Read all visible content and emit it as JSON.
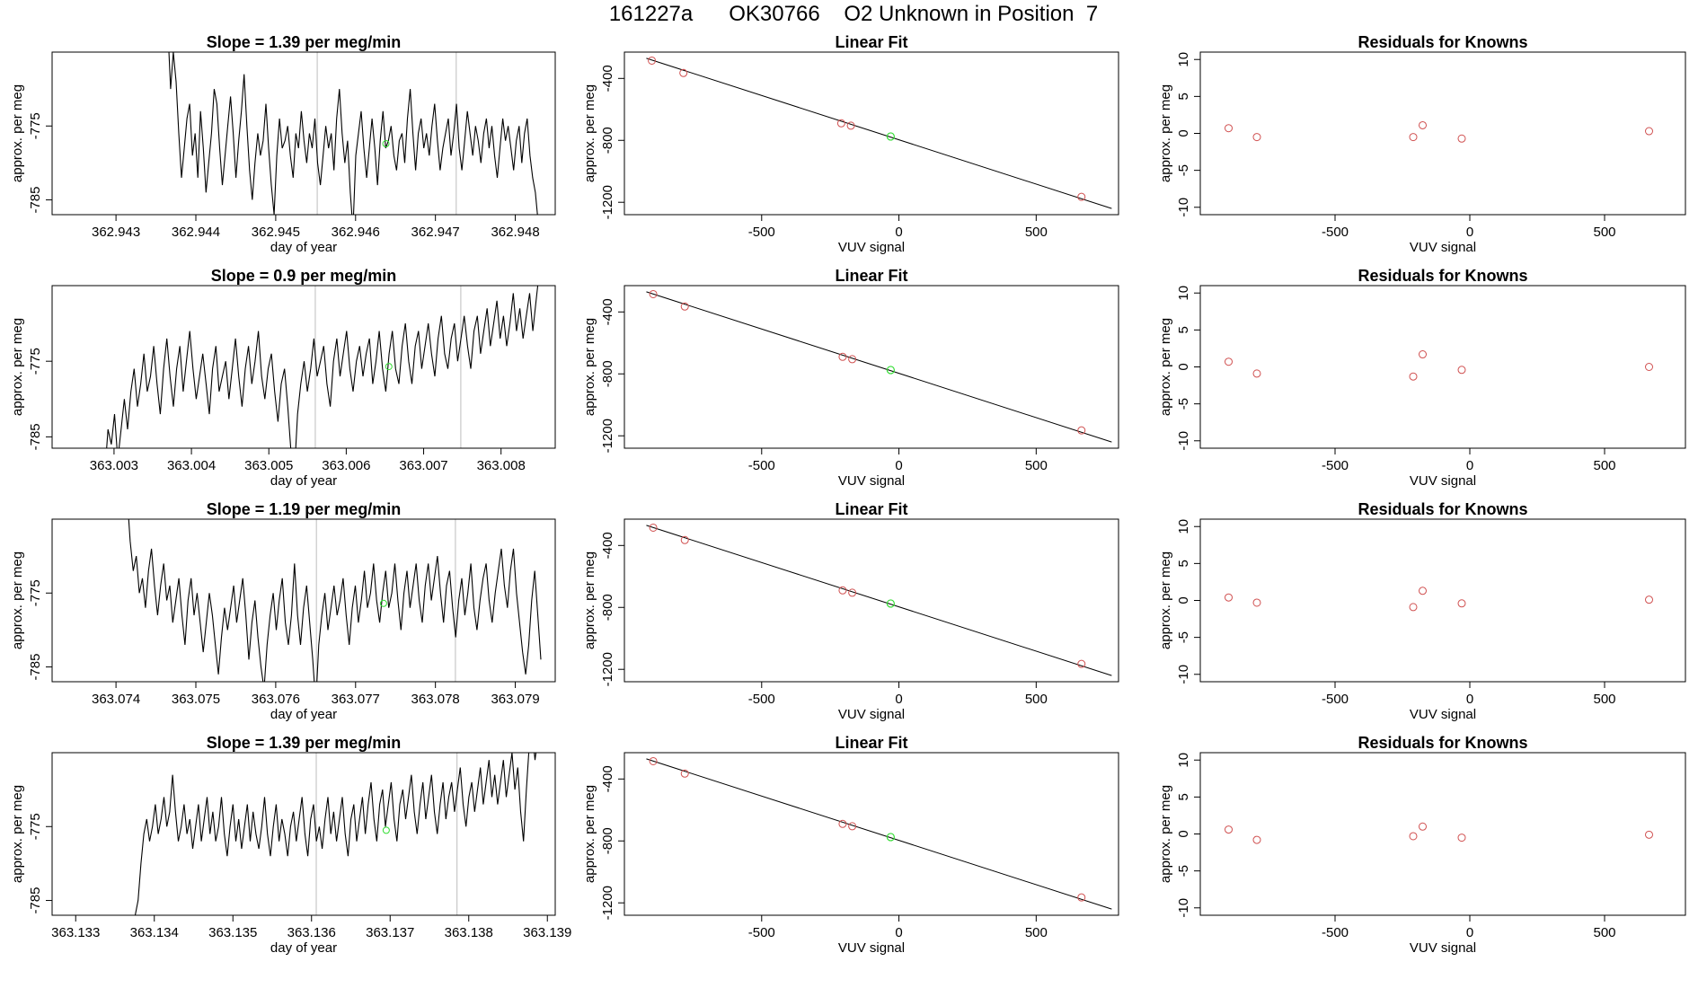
{
  "figure": {
    "title": "161227a      OK30766    O2 Unknown in Position  7"
  },
  "colors": {
    "trace": "#000000",
    "known_point": "#d05050",
    "unknown_point": "#33dd33",
    "marker_line": "#c8c8c8",
    "frame": "#000000"
  },
  "chart_data": [
    {
      "row": 1,
      "panel": "timeseries",
      "type": "line",
      "title": "Slope =  1.39  per meg/min",
      "xlabel": "day of year",
      "ylabel": "approx. per meg",
      "x_tick_labels": [
        "362.943",
        "362.944",
        "362.945",
        "362.946",
        "362.947",
        "362.948"
      ],
      "x_ticks": [
        362.943,
        362.944,
        362.945,
        362.946,
        362.947,
        362.948
      ],
      "y_ticks": [
        -785,
        -775
      ],
      "xlim": [
        362.9422,
        362.9485
      ],
      "ylim": [
        -787,
        -765
      ],
      "vlines": [
        362.94552,
        362.94726
      ],
      "unknown_point": {
        "x": 362.94638,
        "y": -777.4
      },
      "x_start": 362.94365,
      "x_end": 362.94832,
      "series_y": [
        -762,
        -770,
        -765,
        -769,
        -776,
        -782,
        -778,
        -774,
        -772,
        -779,
        -776,
        -782,
        -773,
        -778,
        -784,
        -780,
        -776,
        -770,
        -772,
        -778,
        -783,
        -779,
        -775,
        -771,
        -776,
        -782,
        -777,
        -773,
        -768,
        -775,
        -781,
        -785,
        -780,
        -776,
        -779,
        -777,
        -772,
        -778,
        -783,
        -787,
        -779,
        -774,
        -778,
        -777,
        -775,
        -779,
        -782,
        -776,
        -778,
        -773,
        -777,
        -780,
        -776,
        -778,
        -774,
        -780,
        -783,
        -779,
        -775,
        -778,
        -776,
        -781,
        -774,
        -770,
        -776,
        -780,
        -777,
        -784,
        -789,
        -779,
        -776,
        -773,
        -778,
        -782,
        -778,
        -774,
        -778,
        -783,
        -777,
        -773,
        -778,
        -777,
        -775,
        -779,
        -781,
        -777,
        -776,
        -780,
        -774,
        -770,
        -776,
        -781,
        -776,
        -774,
        -778,
        -776,
        -779,
        -775,
        -772,
        -777,
        -781,
        -778,
        -776,
        -774,
        -779,
        -776,
        -772,
        -778,
        -781,
        -777,
        -773,
        -776,
        -779,
        -775,
        -777,
        -780,
        -776,
        -774,
        -778,
        -775,
        -779,
        -782,
        -778,
        -774,
        -777,
        -775,
        -778,
        -781,
        -777,
        -775,
        -780,
        -776,
        -774,
        -779,
        -782,
        -784,
        -788,
        -789
      ]
    },
    {
      "row": 1,
      "panel": "linear_fit",
      "type": "scatter",
      "title": "Linear Fit",
      "xlabel": "VUV signal",
      "ylabel": "approx. per meg",
      "x_tick_labels": [
        "-500",
        "0",
        "500"
      ],
      "x_ticks": [
        -500,
        0,
        500
      ],
      "y_tick_labels": [
        "-400",
        "-800",
        "-1200"
      ],
      "y_ticks": [
        -400,
        -800,
        -1200
      ],
      "xlim": [
        -1000,
        800
      ],
      "ylim": [
        -1280,
        -230
      ],
      "fit_line": [
        [
          -920,
          -270
        ],
        [
          775,
          -1240
        ]
      ],
      "known_points": [
        [
          -900,
          -285
        ],
        [
          -785,
          -365
        ],
        [
          -210,
          -690
        ],
        [
          -175,
          -705
        ],
        [
          665,
          -1165
        ]
      ],
      "unknown_point": [
        -30,
        -775
      ]
    },
    {
      "row": 1,
      "panel": "residuals",
      "type": "scatter",
      "title": "Residuals for Knowns",
      "xlabel": "VUV signal",
      "ylabel": "approx. per meg",
      "x_tick_labels": [
        "-500",
        "0",
        "500"
      ],
      "x_ticks": [
        -500,
        0,
        500
      ],
      "y_tick_labels": [
        "-10",
        "-5",
        "0",
        "5",
        "10"
      ],
      "y_ticks": [
        -10,
        -5,
        0,
        5,
        10
      ],
      "xlim": [
        -1000,
        800
      ],
      "ylim": [
        -11,
        11
      ],
      "points": [
        [
          -895,
          0.7
        ],
        [
          -790,
          -0.5
        ],
        [
          -210,
          -0.5
        ],
        [
          -175,
          1.1
        ],
        [
          -30,
          -0.7
        ],
        [
          665,
          0.3
        ]
      ]
    },
    {
      "row": 2,
      "panel": "timeseries",
      "type": "line",
      "title": "Slope =  0.9  per meg/min",
      "xlabel": "day of year",
      "ylabel": "approx. per meg",
      "x_tick_labels": [
        "363.003",
        "363.004",
        "363.005",
        "363.006",
        "363.007",
        "363.008"
      ],
      "x_ticks": [
        363.003,
        363.004,
        363.005,
        363.006,
        363.007,
        363.008
      ],
      "y_ticks": [
        -785,
        -775
      ],
      "xlim": [
        363.0022,
        363.0087
      ],
      "ylim": [
        -786.5,
        -765
      ],
      "vlines": [
        363.0056,
        363.00748
      ],
      "unknown_point": {
        "x": 363.00655,
        "y": -775.7
      },
      "x_start": 363.00288,
      "x_end": 363.00858,
      "series_y": [
        -790,
        -784,
        -786,
        -782,
        -788,
        -784,
        -780,
        -784,
        -779,
        -776,
        -781,
        -778,
        -774,
        -779,
        -777,
        -773,
        -778,
        -782,
        -776,
        -772,
        -777,
        -781,
        -776,
        -773,
        -779,
        -775,
        -771,
        -776,
        -780,
        -777,
        -774,
        -778,
        -782,
        -776,
        -773,
        -779,
        -777,
        -775,
        -780,
        -776,
        -772,
        -777,
        -781,
        -776,
        -773,
        -778,
        -775,
        -771,
        -777,
        -780,
        -776,
        -774,
        -779,
        -783,
        -778,
        -776,
        -781,
        -787,
        -790,
        -782,
        -778,
        -775,
        -779,
        -776,
        -772,
        -777,
        -775,
        -773,
        -778,
        -781,
        -775,
        -772,
        -777,
        -774,
        -771,
        -776,
        -779,
        -775,
        -773,
        -777,
        -774,
        -772,
        -778,
        -775,
        -771,
        -776,
        -779,
        -774,
        -771,
        -776,
        -778,
        -773,
        -770,
        -775,
        -778,
        -773,
        -771,
        -776,
        -773,
        -770,
        -774,
        -777,
        -772,
        -769,
        -774,
        -776,
        -772,
        -770,
        -775,
        -772,
        -769,
        -773,
        -776,
        -771,
        -769,
        -774,
        -771,
        -768,
        -773,
        -770,
        -767,
        -772,
        -769,
        -773,
        -770,
        -766,
        -771,
        -768,
        -772,
        -769,
        -766,
        -771,
        -767,
        -763,
        -760,
        -758
      ]
    },
    {
      "row": 2,
      "panel": "linear_fit",
      "type": "scatter",
      "title": "Linear Fit",
      "xlabel": "VUV signal",
      "ylabel": "approx. per meg",
      "x_tick_labels": [
        "-500",
        "0",
        "500"
      ],
      "x_ticks": [
        -500,
        0,
        500
      ],
      "y_tick_labels": [
        "-400",
        "-800",
        "-1200"
      ],
      "y_ticks": [
        -400,
        -800,
        -1200
      ],
      "xlim": [
        -1000,
        800
      ],
      "ylim": [
        -1280,
        -230
      ],
      "fit_line": [
        [
          -920,
          -270
        ],
        [
          775,
          -1240
        ]
      ],
      "known_points": [
        [
          -895,
          -285
        ],
        [
          -780,
          -365
        ],
        [
          -205,
          -690
        ],
        [
          -170,
          -705
        ],
        [
          665,
          -1165
        ]
      ],
      "unknown_point": [
        -30,
        -775
      ]
    },
    {
      "row": 2,
      "panel": "residuals",
      "type": "scatter",
      "title": "Residuals for Knowns",
      "xlabel": "VUV signal",
      "ylabel": "approx. per meg",
      "x_tick_labels": [
        "-500",
        "0",
        "500"
      ],
      "x_ticks": [
        -500,
        0,
        500
      ],
      "y_tick_labels": [
        "-10",
        "-5",
        "0",
        "5",
        "10"
      ],
      "y_ticks": [
        -10,
        -5,
        0,
        5,
        10
      ],
      "xlim": [
        -1000,
        800
      ],
      "ylim": [
        -11,
        11
      ],
      "points": [
        [
          -895,
          0.7
        ],
        [
          -790,
          -0.9
        ],
        [
          -210,
          -1.3
        ],
        [
          -175,
          1.7
        ],
        [
          -30,
          -0.4
        ],
        [
          665,
          0.0
        ]
      ]
    },
    {
      "row": 3,
      "panel": "timeseries",
      "type": "line",
      "title": "Slope =  1.19  per meg/min",
      "xlabel": "day of year",
      "ylabel": "approx. per meg",
      "x_tick_labels": [
        "363.074",
        "363.075",
        "363.076",
        "363.077",
        "363.078",
        "363.079"
      ],
      "x_ticks": [
        363.074,
        363.075,
        363.076,
        363.077,
        363.078,
        363.079
      ],
      "y_ticks": [
        -785,
        -775
      ],
      "xlim": [
        363.0732,
        363.0795
      ],
      "ylim": [
        -787,
        -765
      ],
      "vlines": [
        363.07651,
        363.07825
      ],
      "unknown_point": {
        "x": 363.07735,
        "y": -776.4
      },
      "x_start": 363.07414,
      "x_end": 363.07932,
      "series_y": [
        -762,
        -768,
        -772,
        -770,
        -775,
        -773,
        -777,
        -772,
        -769,
        -774,
        -778,
        -774,
        -771,
        -776,
        -774,
        -779,
        -776,
        -773,
        -778,
        -782,
        -776,
        -773,
        -778,
        -775,
        -779,
        -783,
        -779,
        -775,
        -778,
        -782,
        -786,
        -781,
        -777,
        -780,
        -777,
        -774,
        -779,
        -776,
        -773,
        -778,
        -784,
        -779,
        -776,
        -781,
        -785,
        -788,
        -782,
        -778,
        -775,
        -780,
        -776,
        -773,
        -779,
        -782,
        -778,
        -771,
        -778,
        -782,
        -777,
        -774,
        -779,
        -784,
        -790,
        -782,
        -778,
        -775,
        -780,
        -777,
        -774,
        -778,
        -776,
        -773,
        -778,
        -782,
        -777,
        -774,
        -779,
        -776,
        -772,
        -777,
        -775,
        -771,
        -776,
        -779,
        -775,
        -772,
        -777,
        -775,
        -771,
        -776,
        -780,
        -775,
        -772,
        -777,
        -774,
        -771,
        -776,
        -779,
        -774,
        -771,
        -776,
        -773,
        -770,
        -775,
        -779,
        -774,
        -772,
        -777,
        -781,
        -776,
        -773,
        -778,
        -775,
        -771,
        -777,
        -780,
        -776,
        -773,
        -771,
        -776,
        -779,
        -775,
        -772,
        -769,
        -774,
        -777,
        -772,
        -769,
        -775,
        -779,
        -783,
        -786,
        -782,
        -776,
        -772,
        -778,
        -784
      ]
    },
    {
      "row": 3,
      "panel": "linear_fit",
      "type": "scatter",
      "title": "Linear Fit",
      "xlabel": "VUV signal",
      "ylabel": "approx. per meg",
      "x_tick_labels": [
        "-500",
        "0",
        "500"
      ],
      "x_ticks": [
        -500,
        0,
        500
      ],
      "y_tick_labels": [
        "-400",
        "-800",
        "-1200"
      ],
      "y_ticks": [
        -400,
        -800,
        -1200
      ],
      "xlim": [
        -1000,
        800
      ],
      "ylim": [
        -1280,
        -230
      ],
      "fit_line": [
        [
          -920,
          -270
        ],
        [
          775,
          -1240
        ]
      ],
      "known_points": [
        [
          -895,
          -285
        ],
        [
          -780,
          -365
        ],
        [
          -205,
          -690
        ],
        [
          -170,
          -705
        ],
        [
          665,
          -1165
        ]
      ],
      "unknown_point": [
        -30,
        -775
      ]
    },
    {
      "row": 3,
      "panel": "residuals",
      "type": "scatter",
      "title": "Residuals for Knowns",
      "xlabel": "VUV signal",
      "ylabel": "approx. per meg",
      "x_tick_labels": [
        "-500",
        "0",
        "500"
      ],
      "x_ticks": [
        -500,
        0,
        500
      ],
      "y_tick_labels": [
        "-10",
        "-5",
        "0",
        "5",
        "10"
      ],
      "y_ticks": [
        -10,
        -5,
        0,
        5,
        10
      ],
      "xlim": [
        -1000,
        800
      ],
      "ylim": [
        -11,
        11
      ],
      "points": [
        [
          -895,
          0.4
        ],
        [
          -790,
          -0.3
        ],
        [
          -210,
          -0.9
        ],
        [
          -175,
          1.3
        ],
        [
          -30,
          -0.4
        ],
        [
          665,
          0.1
        ]
      ]
    },
    {
      "row": 4,
      "panel": "timeseries",
      "type": "line",
      "title": "Slope =  1.39  per meg/min",
      "xlabel": "day of year",
      "ylabel": "approx. per meg",
      "x_tick_labels": [
        "363.133",
        "363.134",
        "363.135",
        "363.136",
        "363.137",
        "363.138",
        "363.139"
      ],
      "x_ticks": [
        363.133,
        363.134,
        363.135,
        363.136,
        363.137,
        363.138,
        363.139
      ],
      "y_ticks": [
        -785,
        -775
      ],
      "xlim": [
        363.1327,
        363.1391
      ],
      "ylim": [
        -787,
        -765
      ],
      "vlines": [
        363.13606,
        363.13785
      ],
      "unknown_point": {
        "x": 363.13695,
        "y": -775.5
      },
      "x_start": 363.13372,
      "x_end": 363.13888,
      "series_y": [
        -790,
        -787,
        -785,
        -780,
        -776,
        -774,
        -777,
        -775,
        -772,
        -776,
        -774,
        -771,
        -775,
        -773,
        -768,
        -773,
        -777,
        -775,
        -772,
        -776,
        -774,
        -778,
        -775,
        -772,
        -777,
        -774,
        -771,
        -776,
        -773,
        -777,
        -775,
        -771,
        -776,
        -779,
        -775,
        -772,
        -777,
        -774,
        -778,
        -775,
        -772,
        -777,
        -773,
        -776,
        -778,
        -775,
        -771,
        -776,
        -779,
        -775,
        -772,
        -777,
        -774,
        -776,
        -779,
        -775,
        -773,
        -777,
        -774,
        -771,
        -776,
        -779,
        -774,
        -772,
        -777,
        -775,
        -778,
        -774,
        -771,
        -776,
        -773,
        -777,
        -774,
        -771,
        -776,
        -779,
        -774,
        -772,
        -777,
        -774,
        -771,
        -776,
        -772,
        -769,
        -774,
        -777,
        -772,
        -770,
        -775,
        -772,
        -769,
        -774,
        -777,
        -772,
        -770,
        -774,
        -771,
        -768,
        -773,
        -776,
        -772,
        -769,
        -774,
        -771,
        -768,
        -773,
        -776,
        -772,
        -769,
        -774,
        -771,
        -769,
        -773,
        -770,
        -767,
        -772,
        -775,
        -771,
        -769,
        -773,
        -770,
        -767,
        -772,
        -769,
        -766,
        -771,
        -768,
        -772,
        -769,
        -766,
        -771,
        -768,
        -765,
        -770,
        -767,
        -773,
        -777,
        -770,
        -764,
        -762,
        -766,
        -763
      ]
    },
    {
      "row": 4,
      "panel": "linear_fit",
      "type": "scatter",
      "title": "Linear Fit",
      "xlabel": "VUV signal",
      "ylabel": "approx. per meg",
      "x_tick_labels": [
        "-500",
        "0",
        "500"
      ],
      "x_ticks": [
        -500,
        0,
        500
      ],
      "y_tick_labels": [
        "-400",
        "-800",
        "-1200"
      ],
      "y_ticks": [
        -400,
        -800,
        -1200
      ],
      "xlim": [
        -1000,
        800
      ],
      "ylim": [
        -1280,
        -230
      ],
      "fit_line": [
        [
          -920,
          -270
        ],
        [
          775,
          -1240
        ]
      ],
      "known_points": [
        [
          -895,
          -285
        ],
        [
          -780,
          -365
        ],
        [
          -205,
          -690
        ],
        [
          -170,
          -705
        ],
        [
          665,
          -1165
        ]
      ],
      "unknown_point": [
        -30,
        -775
      ]
    },
    {
      "row": 4,
      "panel": "residuals",
      "type": "scatter",
      "title": "Residuals for Knowns",
      "xlabel": "VUV signal",
      "ylabel": "approx. per meg",
      "x_tick_labels": [
        "-500",
        "0",
        "500"
      ],
      "x_ticks": [
        -500,
        0,
        500
      ],
      "y_tick_labels": [
        "-10",
        "-5",
        "0",
        "5",
        "10"
      ],
      "y_ticks": [
        -10,
        -5,
        0,
        5,
        10
      ],
      "xlim": [
        -1000,
        800
      ],
      "ylim": [
        -11,
        11
      ],
      "points": [
        [
          -895,
          0.6
        ],
        [
          -790,
          -0.8
        ],
        [
          -210,
          -0.3
        ],
        [
          -175,
          1.0
        ],
        [
          -30,
          -0.5
        ],
        [
          665,
          -0.1
        ]
      ]
    }
  ]
}
